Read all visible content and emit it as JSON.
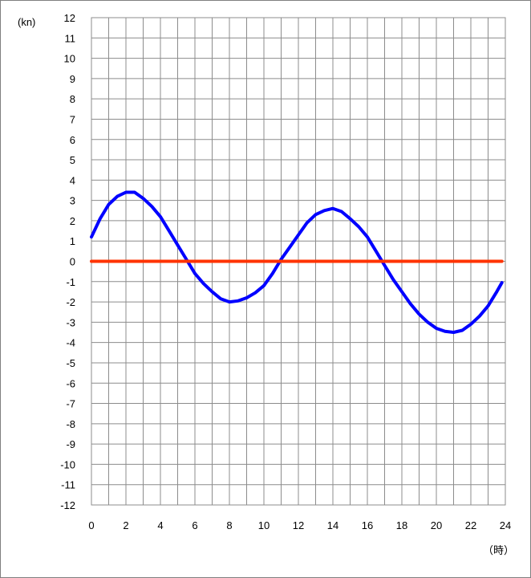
{
  "chart_data": {
    "type": "line",
    "title": "",
    "ylabel": "(kn)",
    "xlabel": "（時）",
    "xlim": [
      0,
      24
    ],
    "ylim": [
      -12,
      12
    ],
    "x_ticks": [
      0,
      2,
      4,
      6,
      8,
      10,
      12,
      14,
      16,
      18,
      20,
      22,
      24
    ],
    "y_ticks": [
      12,
      11,
      10,
      9,
      8,
      7,
      6,
      5,
      4,
      3,
      2,
      1,
      0,
      -1,
      -2,
      -3,
      -4,
      -5,
      -6,
      -7,
      -8,
      -9,
      -10,
      -11,
      -12
    ],
    "grid": true,
    "legend": "none",
    "series": [
      {
        "color": "#0000ff",
        "x": [
          0,
          0.5,
          1,
          1.5,
          2,
          2.5,
          3,
          3.5,
          4,
          4.5,
          5,
          5.5,
          6,
          6.5,
          7,
          7.5,
          8,
          8.5,
          9,
          9.5,
          10,
          10.5,
          11,
          11.5,
          12,
          12.5,
          13,
          13.5,
          14,
          14.5,
          15,
          15.5,
          16,
          16.5,
          17,
          17.5,
          18,
          18.5,
          19,
          19.5,
          20,
          20.5,
          21,
          21.5,
          22,
          22.5,
          23,
          23.5,
          23.8
        ],
        "values": [
          1.2,
          2.1,
          2.8,
          3.2,
          3.4,
          3.4,
          3.1,
          2.7,
          2.2,
          1.5,
          0.8,
          0.1,
          -0.6,
          -1.1,
          -1.5,
          -1.85,
          -2.0,
          -1.95,
          -1.8,
          -1.55,
          -1.2,
          -0.6,
          0.1,
          0.7,
          1.3,
          1.9,
          2.3,
          2.5,
          2.6,
          2.45,
          2.1,
          1.7,
          1.2,
          0.5,
          -0.2,
          -0.9,
          -1.5,
          -2.1,
          -2.6,
          -3.0,
          -3.3,
          -3.45,
          -3.5,
          -3.4,
          -3.1,
          -2.7,
          -2.2,
          -1.5,
          -1.05
        ]
      },
      {
        "color": "#ff3300",
        "x": [
          0,
          23.8
        ],
        "values": [
          0,
          0
        ]
      }
    ]
  }
}
